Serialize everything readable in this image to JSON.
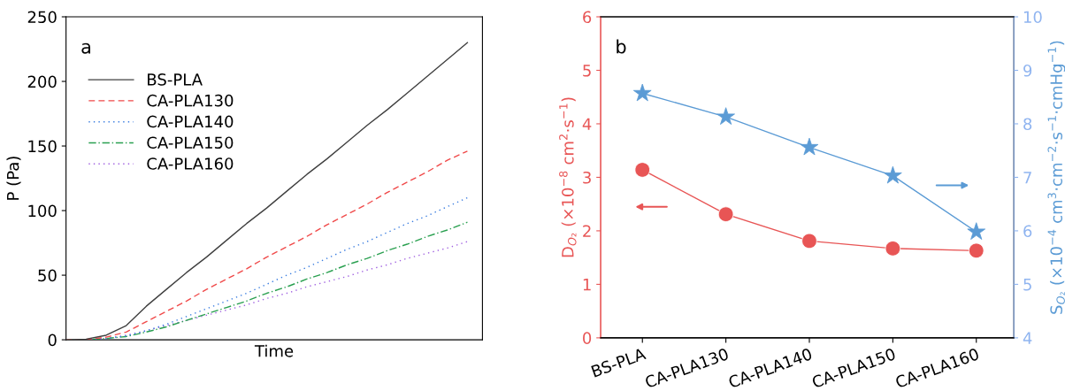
{
  "chart_data": [
    {
      "type": "line",
      "xlabel": "Time",
      "ylabel": "P (Pa)",
      "annotations": [
        "a"
      ],
      "categories": [
        null,
        null,
        null,
        null,
        null,
        null,
        null,
        null,
        null,
        null,
        null,
        null,
        null,
        null,
        null,
        null,
        null,
        null,
        null,
        null,
        null
      ],
      "ylim": [
        0,
        250
      ],
      "yticks": [
        0,
        50,
        100,
        150,
        200,
        250
      ],
      "legend": "top left",
      "marker": "none",
      "series": [
        {
          "name": "BS-PLA",
          "color": "#404040",
          "line_style": "solid",
          "values": [
            0,
            0.5,
            3.5,
            11,
            26,
            39,
            52,
            64,
            77,
            90,
            102,
            115,
            128,
            140,
            153,
            166,
            178,
            191,
            204,
            217,
            230
          ]
        },
        {
          "name": "CA-PLA130",
          "color": "#f04a4a",
          "line_style": "dashed",
          "values": [
            0,
            0.3,
            2,
            6,
            14,
            22,
            30,
            39,
            47,
            55,
            64,
            72,
            80,
            89,
            97,
            105,
            114,
            122,
            130,
            139,
            146
          ]
        },
        {
          "name": "CA-PLA140",
          "color": "#3a7de0",
          "line_style": "dotted",
          "values": [
            0,
            0.2,
            1,
            3,
            7,
            12,
            18,
            24,
            30,
            36,
            43,
            50,
            56,
            63,
            70,
            76,
            83,
            90,
            96,
            103,
            110
          ]
        },
        {
          "name": "CA-PLA150",
          "color": "#2aa050",
          "line_style": "dashdot",
          "values": [
            0,
            0.2,
            1,
            2.5,
            6,
            10,
            15,
            20,
            25,
            30,
            36,
            41,
            47,
            52,
            58,
            63,
            69,
            74,
            80,
            85,
            91
          ]
        },
        {
          "name": "CA-PLA160",
          "color": "#a060e0",
          "line_style": "dotted",
          "values": [
            0,
            0.2,
            1,
            3.5,
            7,
            11,
            15,
            19,
            23,
            27,
            32,
            36,
            41,
            45,
            49,
            54,
            58,
            63,
            67,
            71,
            76
          ]
        }
      ]
    },
    {
      "type": "line",
      "annotations": [
        "b"
      ],
      "ylabel": "D$_{O₂}$ (×10$^{−8}$ cm$^{2}$·s$^{−1}$)",
      "y2label": "S$_{O₂}$ (×10$^{−4}$ cm$^{3}$·cm$^{−2}$·s$^{−1}$·cmHg$^{−1}$)",
      "categories": [
        "BS-PLA",
        "CA-PLA130",
        "CA-PLA140",
        "CA-PLA150",
        "CA-PLA160"
      ],
      "ylim": [
        0,
        6
      ],
      "yticks": [
        0,
        1,
        2,
        3,
        4,
        5,
        6
      ],
      "y2lim": [
        4,
        10
      ],
      "y2ticks": [
        4,
        5,
        6,
        7,
        8,
        9,
        10
      ],
      "series": [
        {
          "color": "#e85555",
          "marker": "circle",
          "values": [
            3.14,
            2.31,
            1.81,
            1.67,
            1.63
          ]
        },
        {
          "color": "#5b9bd5",
          "marker": "star",
          "axis": "y2",
          "values": [
            8.57,
            8.13,
            7.56,
            7.03,
            5.98
          ]
        }
      ]
    }
  ]
}
